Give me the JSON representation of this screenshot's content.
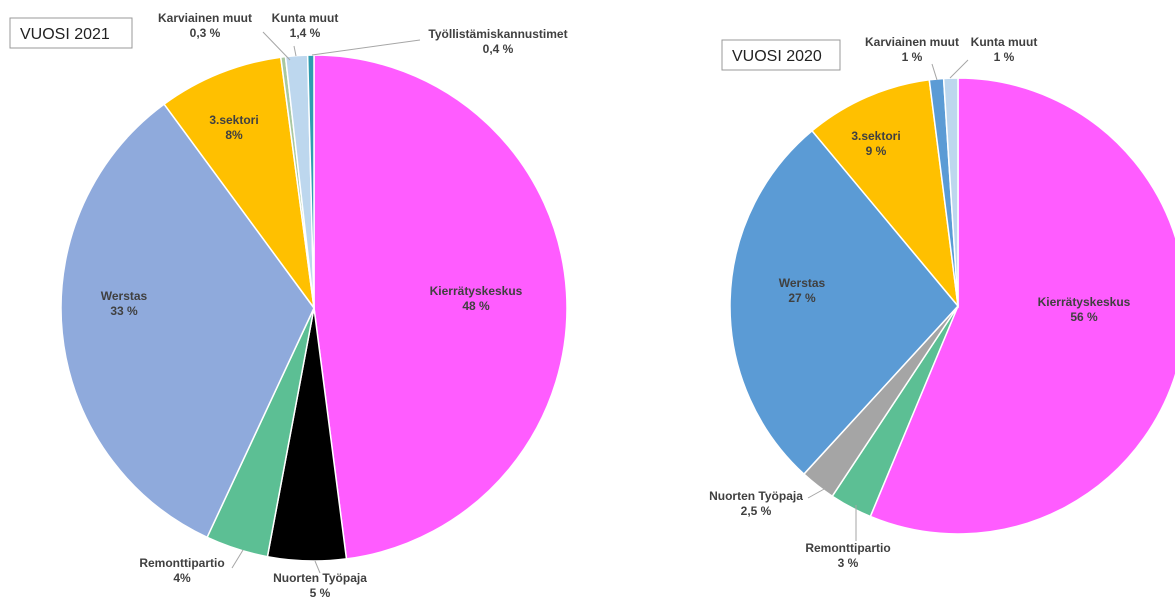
{
  "chart_data": [
    {
      "type": "pie",
      "title": "VUOSI 2021",
      "categories": [
        "Kierrätyskeskus",
        "Nuorten Työpaja",
        "Remonttipartio",
        "Werstas",
        "3.sektori",
        "Karviainen muut",
        "Kunta muut",
        "Työllistämiskannustimet"
      ],
      "values": [
        48,
        5,
        4,
        33,
        8,
        0.3,
        1.4,
        0.4
      ],
      "value_labels": [
        "48 %",
        "5 %",
        "4%",
        "33 %",
        "8%",
        "0,3 %",
        "1,4 %",
        "0,4 %"
      ],
      "colors": [
        "#ff5cff",
        "#000000",
        "#5cbf94",
        "#8faadc",
        "#ffc000",
        "#a9c8a0",
        "#bdd7ee",
        "#2e9cb0"
      ]
    },
    {
      "type": "pie",
      "title": "VUOSI 2020",
      "categories": [
        "Kierrätyskeskus",
        "Remonttipartio",
        "Nuorten Työpaja",
        "Werstas",
        "3.sektori",
        "Karviainen muut",
        "Kunta muut"
      ],
      "values": [
        56,
        3,
        2.5,
        27,
        9,
        1,
        1
      ],
      "value_labels": [
        "56 %",
        "3 %",
        "2,5 %",
        "27 %",
        "9 %",
        "1 %",
        "1 %"
      ],
      "colors": [
        "#ff5cff",
        "#5cbf94",
        "#a5a5a5",
        "#5b9bd5",
        "#ffc000",
        "#5b9bd5",
        "#bdd7ee"
      ]
    }
  ]
}
